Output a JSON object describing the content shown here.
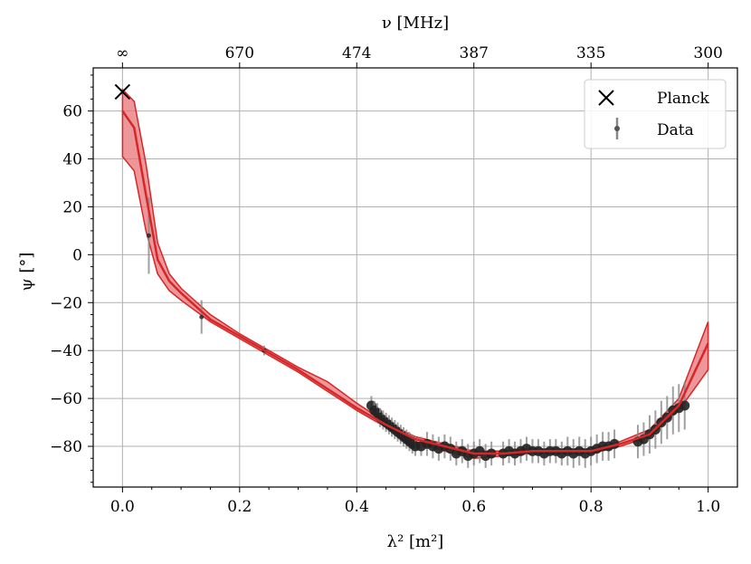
{
  "chart_data": {
    "type": "line",
    "xlabel": "λ² [m²]",
    "ylabel": "ψ [°]",
    "top_xlabel": "ν [MHz]",
    "xlim": [
      -0.05,
      1.05
    ],
    "ylim": [
      -97,
      78
    ],
    "x_ticks": [
      0.0,
      0.2,
      0.4,
      0.6,
      0.8,
      1.0
    ],
    "x_tick_labels": [
      "0.0",
      "0.2",
      "0.4",
      "0.6",
      "0.8",
      "1.0"
    ],
    "y_ticks": [
      60,
      40,
      20,
      0,
      -20,
      -40,
      -60,
      -80
    ],
    "y_tick_labels": [
      "60",
      "40",
      "20",
      "0",
      "−20",
      "−40",
      "−60",
      "−80"
    ],
    "top_ticks": [
      0.0,
      0.2,
      0.4,
      0.6,
      0.8,
      1.0
    ],
    "top_tick_labels": [
      "∞",
      "670",
      "474",
      "387",
      "335",
      "300"
    ],
    "grid": true,
    "legend_position": "top-right",
    "legend": [
      {
        "label": "Planck",
        "marker": "x"
      },
      {
        "label": "Data",
        "marker": "errorbar"
      }
    ],
    "colors": {
      "model": "#d62728",
      "band": "#e8747a",
      "data": "#222222",
      "errorbar": "#888888"
    },
    "planck_point": {
      "x": 0.0,
      "y": 68
    },
    "model": {
      "x": [
        0.0,
        0.02,
        0.04,
        0.06,
        0.08,
        0.1,
        0.15,
        0.2,
        0.25,
        0.3,
        0.35,
        0.4,
        0.45,
        0.5,
        0.55,
        0.6,
        0.65,
        0.7,
        0.75,
        0.8,
        0.85,
        0.9,
        0.95,
        1.0
      ],
      "y": [
        60,
        53,
        25,
        -2,
        -11,
        -16,
        -27,
        -34,
        -41,
        -48,
        -56,
        -64,
        -71,
        -77,
        -80,
        -83,
        -83,
        -82,
        -82,
        -82,
        -79,
        -75,
        -63,
        -37
      ],
      "lo": [
        41,
        35,
        10,
        -8,
        -15,
        -19,
        -28,
        -35,
        -42,
        -49,
        -57,
        -65,
        -72,
        -78,
        -82,
        -85,
        -84,
        -83,
        -83,
        -83,
        -80,
        -76,
        -65,
        -48
      ],
      "hi": [
        69,
        64,
        38,
        5,
        -8,
        -14,
        -25,
        -33,
        -40,
        -47,
        -53,
        -62,
        -70,
        -76,
        -79,
        -82,
        -82,
        -81,
        -81,
        -81,
        -78,
        -73,
        -60,
        -28
      ]
    },
    "data_points": {
      "x": [
        0.045,
        0.135,
        0.242,
        0.425,
        0.43,
        0.435,
        0.44,
        0.445,
        0.45,
        0.455,
        0.46,
        0.465,
        0.47,
        0.475,
        0.48,
        0.485,
        0.49,
        0.495,
        0.5,
        0.51,
        0.52,
        0.53,
        0.54,
        0.55,
        0.56,
        0.57,
        0.58,
        0.59,
        0.6,
        0.61,
        0.62,
        0.63,
        0.65,
        0.66,
        0.67,
        0.68,
        0.69,
        0.7,
        0.71,
        0.72,
        0.73,
        0.74,
        0.75,
        0.76,
        0.77,
        0.78,
        0.79,
        0.8,
        0.81,
        0.82,
        0.83,
        0.84,
        0.88,
        0.89,
        0.9,
        0.91,
        0.92,
        0.93,
        0.94,
        0.95,
        0.96
      ],
      "y": [
        8,
        -26,
        -40,
        -63,
        -65,
        -66,
        -68,
        -69,
        -70,
        -71,
        -72,
        -73,
        -74,
        -75,
        -76,
        -77,
        -78,
        -79,
        -80,
        -80,
        -79,
        -80,
        -81,
        -80,
        -81,
        -83,
        -82,
        -84,
        -83,
        -82,
        -84,
        -83,
        -83,
        -82,
        -83,
        -82,
        -81,
        -82,
        -82,
        -83,
        -82,
        -82,
        -83,
        -82,
        -83,
        -82,
        -83,
        -82,
        -81,
        -80,
        -80,
        -79,
        -78,
        -77,
        -75,
        -73,
        -70,
        -68,
        -65,
        -64,
        -63
      ],
      "err": [
        16,
        7,
        2,
        4,
        4,
        4,
        4,
        4,
        4,
        4,
        4,
        4,
        4,
        4,
        4,
        4,
        4,
        4,
        4,
        4,
        5,
        5,
        5,
        5,
        5,
        5,
        5,
        5,
        5,
        5,
        5,
        5,
        5,
        5,
        5,
        5,
        5,
        5,
        5,
        5,
        5,
        5,
        5,
        6,
        6,
        6,
        6,
        6,
        6,
        6,
        6,
        6,
        7,
        7,
        8,
        8,
        9,
        9,
        10,
        10,
        10
      ]
    }
  }
}
